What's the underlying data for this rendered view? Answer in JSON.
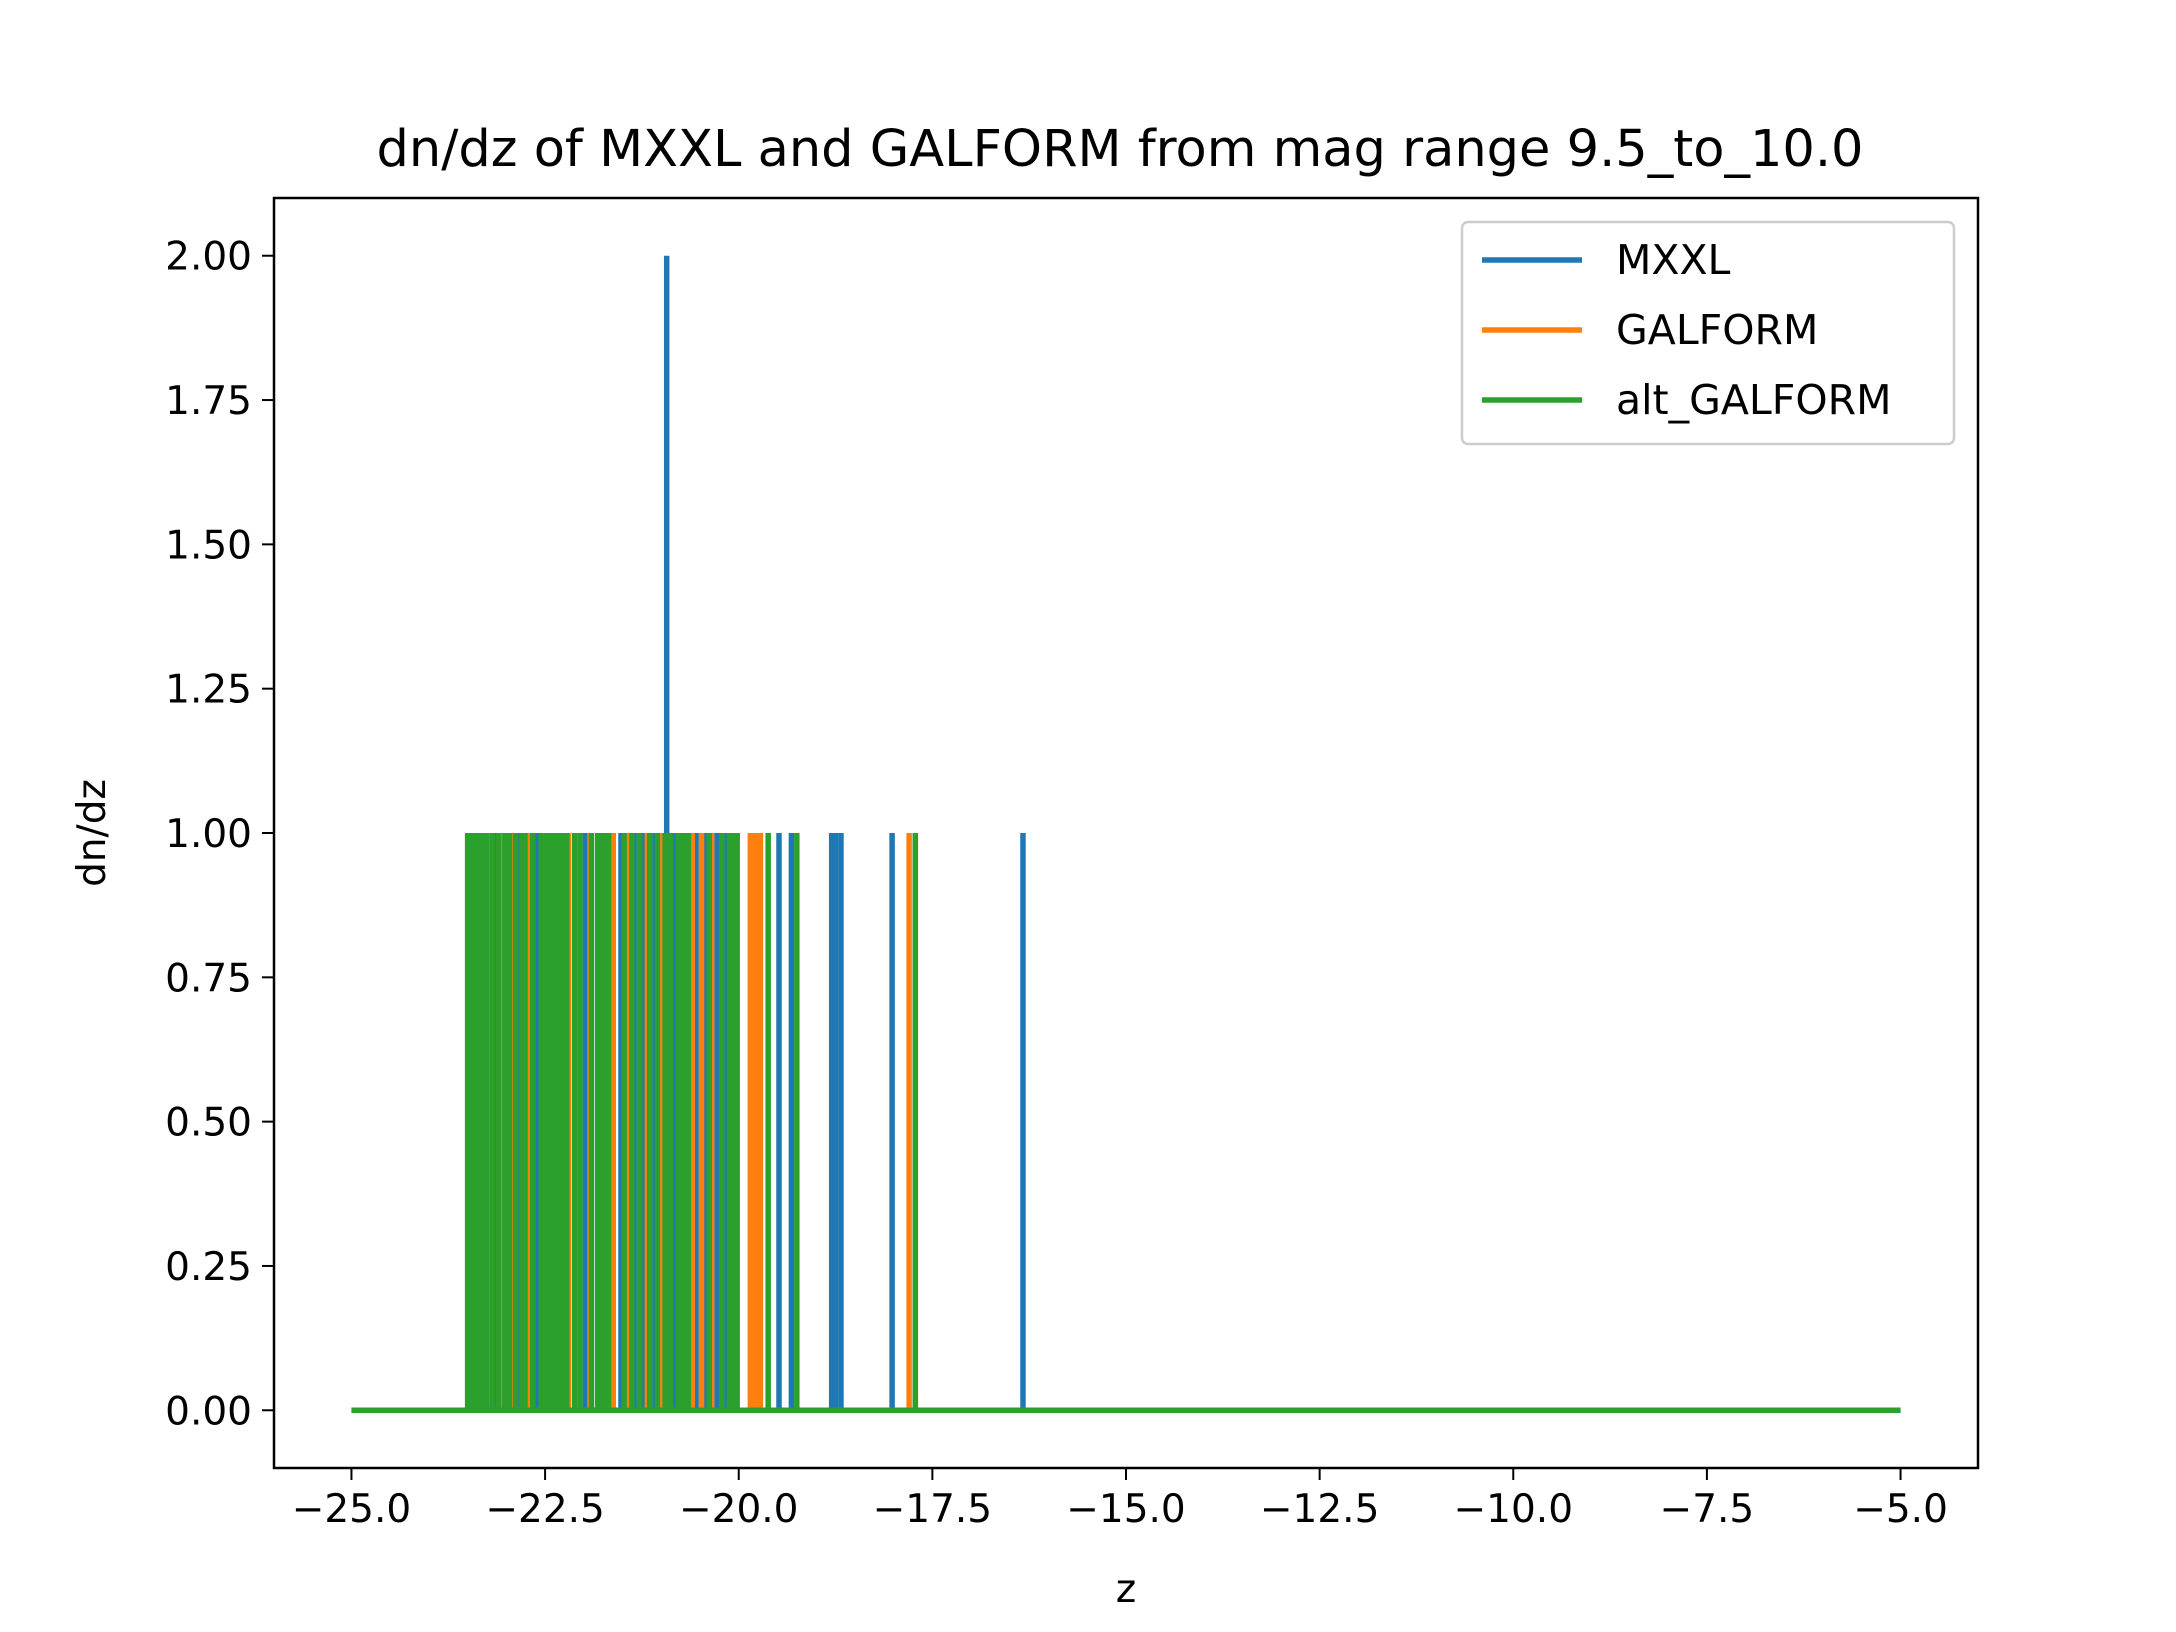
{
  "chart_data": {
    "type": "line",
    "title": "dn/dz of MXXL and GALFORM from mag range 9.5_to_10.0",
    "xlabel": "z",
    "ylabel": "dn/dz",
    "xlim": [
      -26.0,
      -4.0
    ],
    "ylim": [
      -0.1,
      2.1
    ],
    "xticks": [
      -25.0,
      -22.5,
      -20.0,
      -17.5,
      -15.0,
      -12.5,
      -10.0,
      -7.5,
      -5.0
    ],
    "xtick_labels": [
      "−25.0",
      "−22.5",
      "−20.0",
      "−17.5",
      "−15.0",
      "−12.5",
      "−10.0",
      "−7.5",
      "−5.0"
    ],
    "yticks": [
      0.0,
      0.25,
      0.5,
      0.75,
      1.0,
      1.25,
      1.5,
      1.75,
      2.0
    ],
    "ytick_labels": [
      "0.00",
      "0.25",
      "0.50",
      "0.75",
      "1.00",
      "1.25",
      "1.50",
      "1.75",
      "2.00"
    ],
    "grid": false,
    "legend_position": "top-right",
    "x_range": [
      -25.0,
      -5.0
    ],
    "series": [
      {
        "name": "MXXL",
        "color": "#1f77b4",
        "spikes": [
          {
            "x": -23.38,
            "y": 1
          },
          {
            "x": -23.12,
            "y": 1
          },
          {
            "x": -22.85,
            "y": 1
          },
          {
            "x": -22.6,
            "y": 1
          },
          {
            "x": -22.35,
            "y": 1
          },
          {
            "x": -21.98,
            "y": 1
          },
          {
            "x": -21.72,
            "y": 1
          },
          {
            "x": -21.52,
            "y": 1
          },
          {
            "x": -21.35,
            "y": 1
          },
          {
            "x": -21.22,
            "y": 1
          },
          {
            "x": -21.08,
            "y": 1
          },
          {
            "x": -20.93,
            "y": 2
          },
          {
            "x": -20.82,
            "y": 1
          },
          {
            "x": -20.7,
            "y": 1
          },
          {
            "x": -20.55,
            "y": 1
          },
          {
            "x": -20.42,
            "y": 1
          },
          {
            "x": -20.28,
            "y": 1
          },
          {
            "x": -20.15,
            "y": 1
          },
          {
            "x": -19.48,
            "y": 1
          },
          {
            "x": -19.32,
            "y": 1
          },
          {
            "x": -18.8,
            "y": 1
          },
          {
            "x": -18.75,
            "y": 1
          },
          {
            "x": -18.68,
            "y": 1
          },
          {
            "x": -18.02,
            "y": 1
          },
          {
            "x": -16.33,
            "y": 1
          }
        ]
      },
      {
        "name": "GALFORM",
        "color": "#ff7f0e",
        "spikes": [
          {
            "x": -23.3,
            "y": 1
          },
          {
            "x": -23.05,
            "y": 1
          },
          {
            "x": -22.92,
            "y": 1
          },
          {
            "x": -22.72,
            "y": 1
          },
          {
            "x": -22.5,
            "y": 1
          },
          {
            "x": -22.2,
            "y": 1
          },
          {
            "x": -21.92,
            "y": 1
          },
          {
            "x": -21.62,
            "y": 1
          },
          {
            "x": -21.42,
            "y": 1
          },
          {
            "x": -21.18,
            "y": 1
          },
          {
            "x": -20.98,
            "y": 1
          },
          {
            "x": -20.6,
            "y": 1
          },
          {
            "x": -20.48,
            "y": 1
          },
          {
            "x": -20.35,
            "y": 1
          },
          {
            "x": -20.05,
            "y": 1
          },
          {
            "x": -19.85,
            "y": 1
          },
          {
            "x": -19.78,
            "y": 1
          },
          {
            "x": -19.72,
            "y": 1
          },
          {
            "x": -17.8,
            "y": 1
          },
          {
            "x": -17.72,
            "y": 1
          }
        ]
      },
      {
        "name": "alt_GALFORM",
        "color": "#2ca02c",
        "spikes": [
          {
            "x": -23.5,
            "y": 1
          },
          {
            "x": -23.46,
            "y": 1
          },
          {
            "x": -23.42,
            "y": 1
          },
          {
            "x": -23.36,
            "y": 1
          },
          {
            "x": -23.3,
            "y": 1
          },
          {
            "x": -23.25,
            "y": 1
          },
          {
            "x": -23.18,
            "y": 1
          },
          {
            "x": -23.1,
            "y": 1
          },
          {
            "x": -23.02,
            "y": 1
          },
          {
            "x": -22.96,
            "y": 1
          },
          {
            "x": -22.88,
            "y": 1
          },
          {
            "x": -22.8,
            "y": 1
          },
          {
            "x": -22.76,
            "y": 1
          },
          {
            "x": -22.66,
            "y": 1
          },
          {
            "x": -22.55,
            "y": 1
          },
          {
            "x": -22.48,
            "y": 1
          },
          {
            "x": -22.42,
            "y": 1
          },
          {
            "x": -22.38,
            "y": 1
          },
          {
            "x": -22.32,
            "y": 1
          },
          {
            "x": -22.28,
            "y": 1
          },
          {
            "x": -22.22,
            "y": 1
          },
          {
            "x": -22.12,
            "y": 1
          },
          {
            "x": -22.05,
            "y": 1
          },
          {
            "x": -21.9,
            "y": 1
          },
          {
            "x": -21.82,
            "y": 1
          },
          {
            "x": -21.75,
            "y": 1
          },
          {
            "x": -21.68,
            "y": 1
          },
          {
            "x": -21.48,
            "y": 1
          },
          {
            "x": -21.38,
            "y": 1
          },
          {
            "x": -21.28,
            "y": 1
          },
          {
            "x": -21.15,
            "y": 1
          },
          {
            "x": -21.05,
            "y": 1
          },
          {
            "x": -20.95,
            "y": 1
          },
          {
            "x": -20.88,
            "y": 1
          },
          {
            "x": -20.78,
            "y": 1
          },
          {
            "x": -20.72,
            "y": 1
          },
          {
            "x": -20.65,
            "y": 1
          },
          {
            "x": -20.38,
            "y": 1
          },
          {
            "x": -20.22,
            "y": 1
          },
          {
            "x": -20.12,
            "y": 1
          },
          {
            "x": -20.08,
            "y": 1
          },
          {
            "x": -20.02,
            "y": 1
          },
          {
            "x": -19.62,
            "y": 1
          },
          {
            "x": -19.25,
            "y": 1
          },
          {
            "x": -17.72,
            "y": 1
          }
        ]
      }
    ]
  }
}
